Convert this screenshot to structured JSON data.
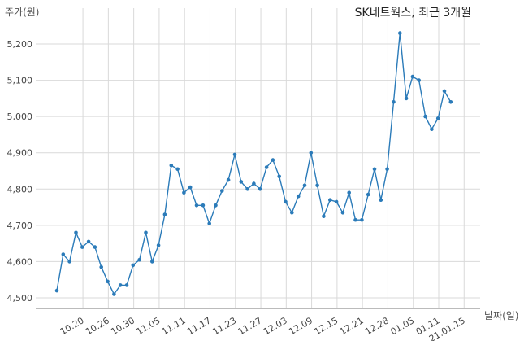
{
  "chart_data": {
    "type": "line",
    "title": "SK네트웍스, 최근 3개월",
    "ylabel": "주가(원)",
    "xlabel": "날짜(일)",
    "ylim": [
      4500,
      5260
    ],
    "yticks": [
      4500,
      4600,
      4700,
      4800,
      4900,
      5000,
      5100,
      5200
    ],
    "ytick_labels": [
      "4,500",
      "4,600",
      "4,700",
      "4,800",
      "4,900",
      "5,000",
      "5,100",
      "5,200"
    ],
    "xtick_labels": [
      "10.20",
      "10.26",
      "10.30",
      "11.05",
      "11.11",
      "11.17",
      "11.23",
      "11.27",
      "12.03",
      "12.09",
      "12.15",
      "12.21",
      "12.28",
      "01.05",
      "01.11",
      "21.01.15"
    ],
    "xtick_index": [
      5,
      9,
      13,
      17,
      21,
      25,
      29,
      33,
      37,
      41,
      45,
      49,
      53,
      57,
      61,
      65
    ],
    "grid": true,
    "color": "#2b7bb9",
    "series": [
      {
        "values": [
          4520,
          4620,
          4600,
          4680,
          4640,
          4655,
          4640,
          4585,
          4545,
          4510,
          4535,
          4535,
          4590,
          4605,
          4680,
          4600,
          4645,
          4730,
          4865,
          4855,
          4790,
          4805,
          4755,
          4755,
          4705,
          4755,
          4795,
          4825,
          4895,
          4820,
          4800,
          4815,
          4800,
          4860,
          4880,
          4835,
          4765,
          4735,
          4780,
          4810,
          4900,
          4810,
          4725,
          4770,
          4765,
          4735,
          4790,
          4715,
          4715,
          4785,
          4855,
          4770,
          4855,
          5040,
          5230,
          5050,
          5110,
          5100,
          5000,
          4965,
          4995,
          5070,
          5040
        ]
      }
    ]
  }
}
